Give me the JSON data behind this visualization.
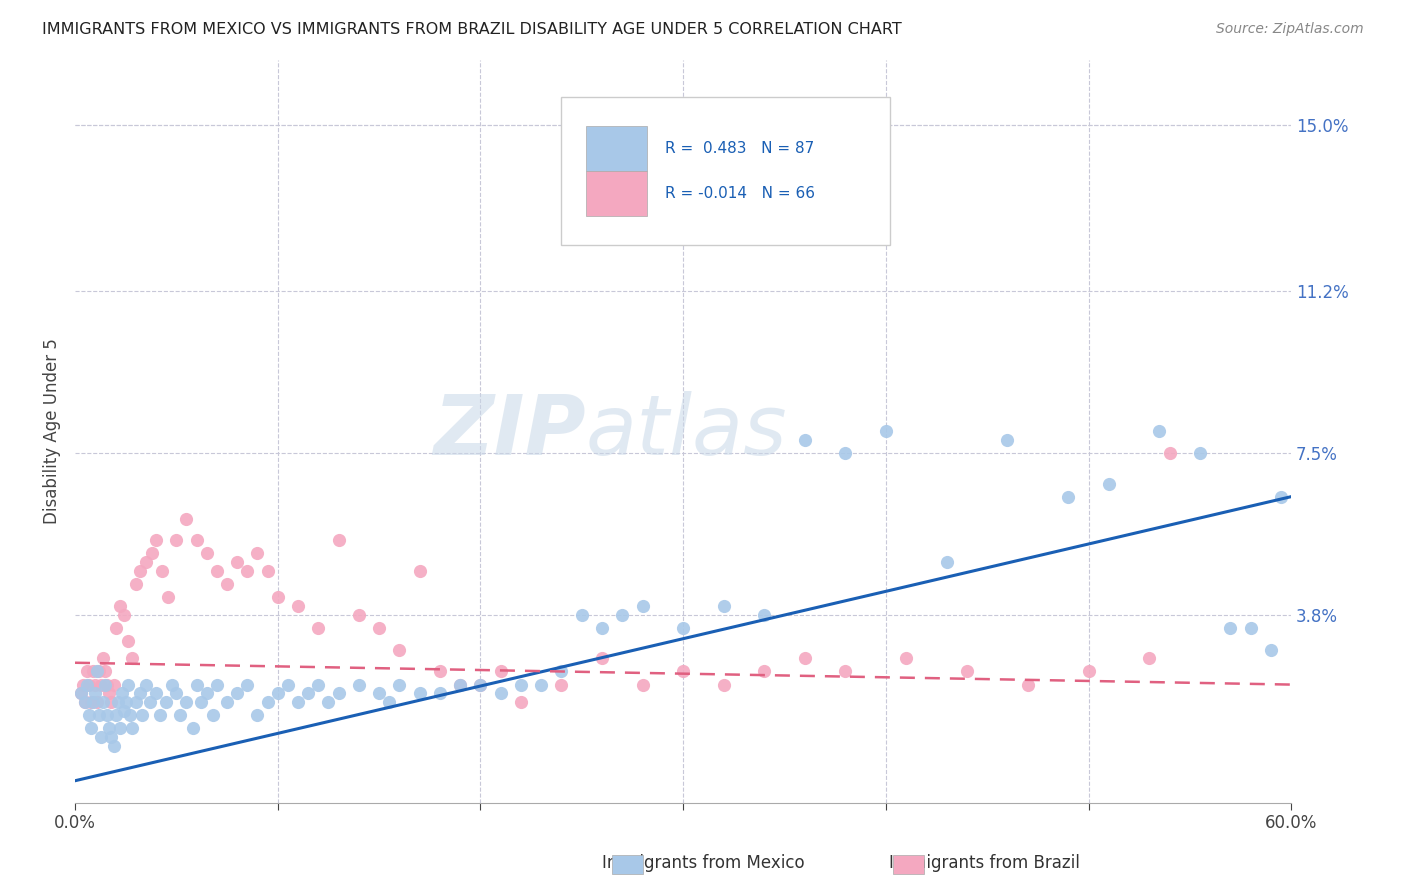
{
  "title": "IMMIGRANTS FROM MEXICO VS IMMIGRANTS FROM BRAZIL DISABILITY AGE UNDER 5 CORRELATION CHART",
  "source": "Source: ZipAtlas.com",
  "ylabel": "Disability Age Under 5",
  "xlim": [
    0.0,
    0.6
  ],
  "ylim": [
    -0.005,
    0.165
  ],
  "yticks_right": [
    0.038,
    0.075,
    0.112,
    0.15
  ],
  "ytick_labels_right": [
    "3.8%",
    "7.5%",
    "11.2%",
    "15.0%"
  ],
  "legend_r_mexico": "R =  0.483",
  "legend_n_mexico": "N = 87",
  "legend_r_brazil": "R = -0.014",
  "legend_n_brazil": "N = 66",
  "mexico_color": "#a8c8e8",
  "brazil_color": "#f4a8c0",
  "mexico_line_color": "#1a5fb4",
  "brazil_line_color": "#e06080",
  "background_color": "#ffffff",
  "grid_color": "#c8c8d8",
  "watermark_zip": "ZIP",
  "watermark_atlas": "atlas",
  "mexico_x": [
    0.003,
    0.005,
    0.006,
    0.007,
    0.008,
    0.009,
    0.01,
    0.011,
    0.012,
    0.013,
    0.014,
    0.015,
    0.016,
    0.017,
    0.018,
    0.019,
    0.02,
    0.021,
    0.022,
    0.023,
    0.024,
    0.025,
    0.026,
    0.027,
    0.028,
    0.03,
    0.032,
    0.033,
    0.035,
    0.037,
    0.04,
    0.042,
    0.045,
    0.048,
    0.05,
    0.052,
    0.055,
    0.058,
    0.06,
    0.062,
    0.065,
    0.068,
    0.07,
    0.075,
    0.08,
    0.085,
    0.09,
    0.095,
    0.1,
    0.105,
    0.11,
    0.115,
    0.12,
    0.125,
    0.13,
    0.14,
    0.15,
    0.155,
    0.16,
    0.17,
    0.18,
    0.19,
    0.2,
    0.21,
    0.22,
    0.23,
    0.24,
    0.25,
    0.26,
    0.27,
    0.28,
    0.3,
    0.32,
    0.34,
    0.36,
    0.38,
    0.4,
    0.43,
    0.46,
    0.49,
    0.51,
    0.535,
    0.555,
    0.57,
    0.58,
    0.59,
    0.595
  ],
  "mexico_y": [
    0.02,
    0.018,
    0.022,
    0.015,
    0.012,
    0.018,
    0.02,
    0.025,
    0.015,
    0.01,
    0.018,
    0.022,
    0.015,
    0.012,
    0.01,
    0.008,
    0.015,
    0.018,
    0.012,
    0.02,
    0.016,
    0.018,
    0.022,
    0.015,
    0.012,
    0.018,
    0.02,
    0.015,
    0.022,
    0.018,
    0.02,
    0.015,
    0.018,
    0.022,
    0.02,
    0.015,
    0.018,
    0.012,
    0.022,
    0.018,
    0.02,
    0.015,
    0.022,
    0.018,
    0.02,
    0.022,
    0.015,
    0.018,
    0.02,
    0.022,
    0.018,
    0.02,
    0.022,
    0.018,
    0.02,
    0.022,
    0.02,
    0.018,
    0.022,
    0.02,
    0.02,
    0.022,
    0.022,
    0.02,
    0.022,
    0.022,
    0.025,
    0.038,
    0.035,
    0.038,
    0.04,
    0.035,
    0.04,
    0.038,
    0.078,
    0.075,
    0.08,
    0.05,
    0.078,
    0.065,
    0.068,
    0.08,
    0.075,
    0.035,
    0.035,
    0.03,
    0.065
  ],
  "brazil_x": [
    0.003,
    0.004,
    0.005,
    0.006,
    0.007,
    0.008,
    0.009,
    0.01,
    0.011,
    0.012,
    0.013,
    0.014,
    0.015,
    0.016,
    0.017,
    0.018,
    0.019,
    0.02,
    0.022,
    0.024,
    0.026,
    0.028,
    0.03,
    0.032,
    0.035,
    0.038,
    0.04,
    0.043,
    0.046,
    0.05,
    0.055,
    0.06,
    0.065,
    0.07,
    0.075,
    0.08,
    0.085,
    0.09,
    0.095,
    0.1,
    0.11,
    0.12,
    0.13,
    0.14,
    0.15,
    0.16,
    0.17,
    0.18,
    0.19,
    0.2,
    0.21,
    0.22,
    0.24,
    0.26,
    0.28,
    0.3,
    0.32,
    0.34,
    0.36,
    0.38,
    0.41,
    0.44,
    0.47,
    0.5,
    0.53,
    0.54
  ],
  "brazil_y": [
    0.02,
    0.022,
    0.018,
    0.025,
    0.022,
    0.018,
    0.025,
    0.022,
    0.018,
    0.025,
    0.022,
    0.028,
    0.025,
    0.022,
    0.02,
    0.018,
    0.022,
    0.035,
    0.04,
    0.038,
    0.032,
    0.028,
    0.045,
    0.048,
    0.05,
    0.052,
    0.055,
    0.048,
    0.042,
    0.055,
    0.06,
    0.055,
    0.052,
    0.048,
    0.045,
    0.05,
    0.048,
    0.052,
    0.048,
    0.042,
    0.04,
    0.035,
    0.055,
    0.038,
    0.035,
    0.03,
    0.048,
    0.025,
    0.022,
    0.022,
    0.025,
    0.018,
    0.022,
    0.028,
    0.022,
    0.025,
    0.022,
    0.025,
    0.028,
    0.025,
    0.028,
    0.025,
    0.022,
    0.025,
    0.028,
    0.075
  ]
}
